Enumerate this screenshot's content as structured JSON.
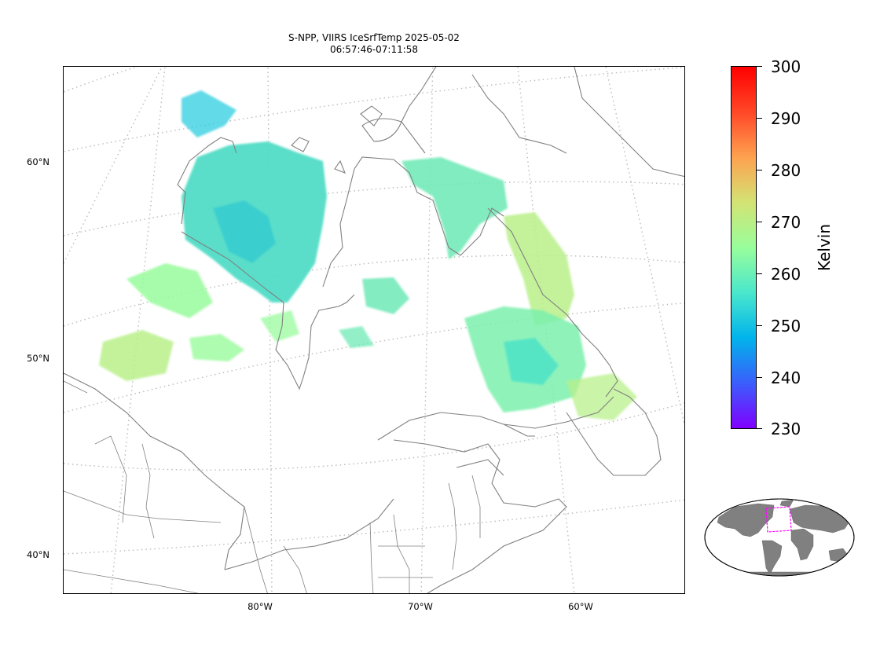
{
  "title": {
    "line1": "S-NPP, VIIRS IceSrfTemp 2025-05-02",
    "line2": "06:57:46-07:11:58"
  },
  "map": {
    "lat_labels": [
      "60°N",
      "50°N",
      "40°N"
    ],
    "lon_labels": [
      "80°W",
      "70°W",
      "60°W"
    ],
    "coastline_color": "#808080",
    "graticule_color": "#bbbbbb",
    "graticule_style": "dotted"
  },
  "colorbar": {
    "label": "Kelvin",
    "ticks": [
      "300",
      "290",
      "280",
      "270",
      "260",
      "250",
      "240",
      "230"
    ],
    "min": 230,
    "max": 300,
    "colormap": "rainbow",
    "colors": [
      "#8000ff",
      "#3a5efc",
      "#00b4eb",
      "#4ae7cc",
      "#98fe9b",
      "#d3e374",
      "#fea14f",
      "#ff4727",
      "#ff0000"
    ]
  },
  "inset": {
    "name": "global-locator",
    "land_color": "#808080",
    "region_box_color": "#ff00ff"
  }
}
